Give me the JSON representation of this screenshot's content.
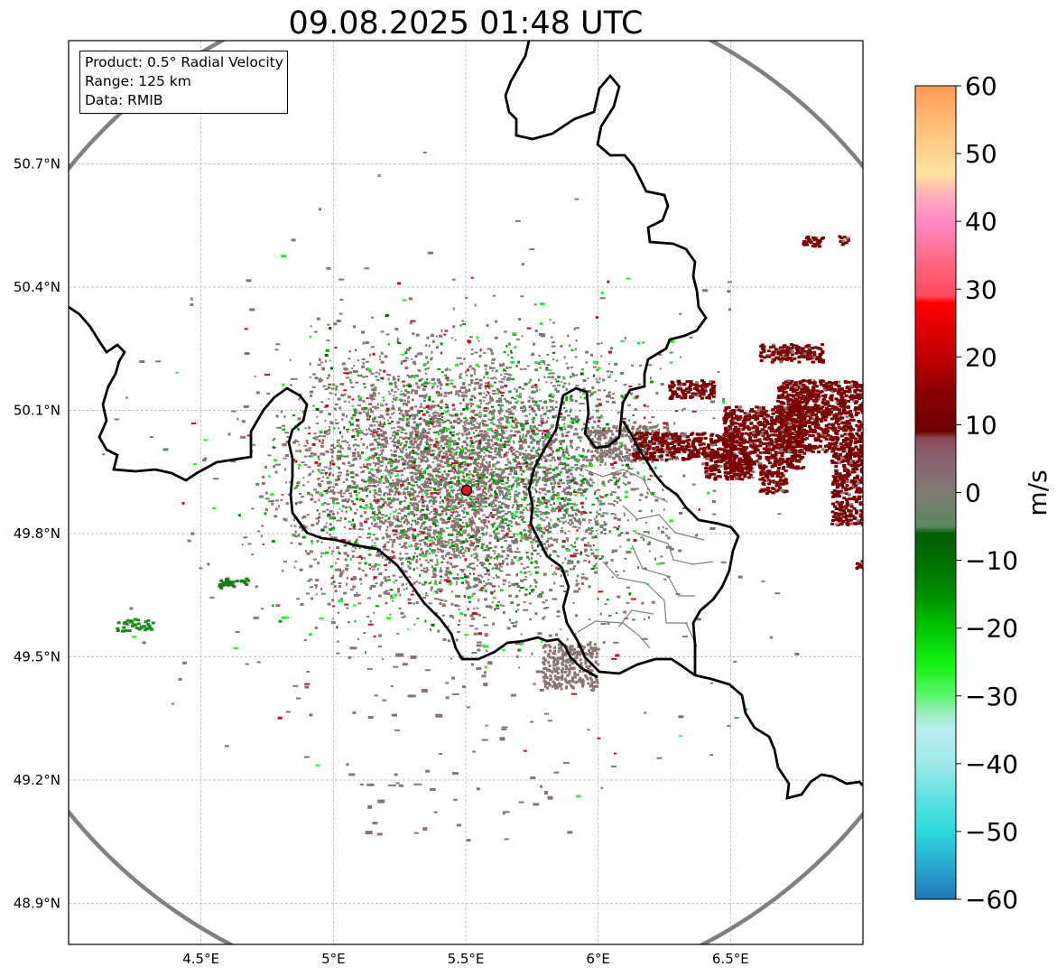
{
  "title": "09.08.2025 01:48 UTC",
  "info": {
    "product": "Product: 0.5° Radial Velocity",
    "range": "Range: 125 km",
    "data": "Data: RMIB"
  },
  "map": {
    "lon_range": [
      4.0,
      7.0
    ],
    "lat_range": [
      48.8,
      51.0
    ],
    "x_ticks": [
      "4.5°E",
      "5°E",
      "5.5°E",
      "6°E",
      "6.5°E"
    ],
    "x_tick_values": [
      4.5,
      5.0,
      5.5,
      6.0,
      6.5
    ],
    "y_ticks": [
      "50.7°N",
      "50.4°N",
      "50.1°N",
      "49.8°N",
      "49.5°N",
      "49.2°N",
      "48.9°N"
    ],
    "y_tick_values": [
      50.7,
      50.4,
      50.1,
      49.8,
      49.5,
      49.2,
      48.9
    ],
    "radar_site": {
      "lon": 5.505,
      "lat": 49.914
    },
    "grid": true,
    "range_ring_color": "#808080",
    "border_color": "#000000",
    "region_border_color": "#808080"
  },
  "colorbar": {
    "unit": "m/s",
    "min": -60,
    "max": 60,
    "ticks": [
      "60",
      "50",
      "40",
      "30",
      "20",
      "10",
      "0",
      "−10",
      "−20",
      "−30",
      "−40",
      "−50",
      "−60"
    ],
    "tick_values": [
      60,
      50,
      40,
      30,
      20,
      10,
      0,
      -10,
      -20,
      -30,
      -40,
      -50,
      -60
    ],
    "stops": [
      {
        "v": -60,
        "c": "#1f78b4"
      },
      {
        "v": -55,
        "c": "#2aa9d2"
      },
      {
        "v": -50,
        "c": "#2ed8dc"
      },
      {
        "v": -45,
        "c": "#5fe2e2"
      },
      {
        "v": -40,
        "c": "#9ee8ea"
      },
      {
        "v": -35,
        "c": "#b8eef0"
      },
      {
        "v": -32,
        "c": "#93eeb0"
      },
      {
        "v": -30,
        "c": "#5af66a"
      },
      {
        "v": -25,
        "c": "#10f010"
      },
      {
        "v": -20,
        "c": "#00c400"
      },
      {
        "v": -15,
        "c": "#008f00"
      },
      {
        "v": -10,
        "c": "#006e00"
      },
      {
        "v": -6,
        "c": "#006000"
      },
      {
        "v": -5,
        "c": "#5a8a5e"
      },
      {
        "v": 0,
        "c": "#7e7a72"
      },
      {
        "v": 5,
        "c": "#8a6272"
      },
      {
        "v": 8,
        "c": "#8a4a52"
      },
      {
        "v": 9,
        "c": "#6e0000"
      },
      {
        "v": 15,
        "c": "#8a0000"
      },
      {
        "v": 20,
        "c": "#c00000"
      },
      {
        "v": 25,
        "c": "#e60000"
      },
      {
        "v": 28,
        "c": "#ff0000"
      },
      {
        "v": 29,
        "c": "#ff4a5e"
      },
      {
        "v": 35,
        "c": "#ff6e8a"
      },
      {
        "v": 40,
        "c": "#ff8ac8"
      },
      {
        "v": 44,
        "c": "#ffb0b8"
      },
      {
        "v": 47,
        "c": "#ffe4a0"
      },
      {
        "v": 55,
        "c": "#ffb874"
      },
      {
        "v": 60,
        "c": "#ff9a56"
      }
    ]
  },
  "echo_colors": {
    "zero_brown": "#8a7472",
    "zero_green": "#62866a",
    "pos_darkred": "#7a0000",
    "pos_red": "#c0102a",
    "neg_green": "#00a000",
    "neg_bright": "#22ee33",
    "neg_dark": "#006400"
  }
}
